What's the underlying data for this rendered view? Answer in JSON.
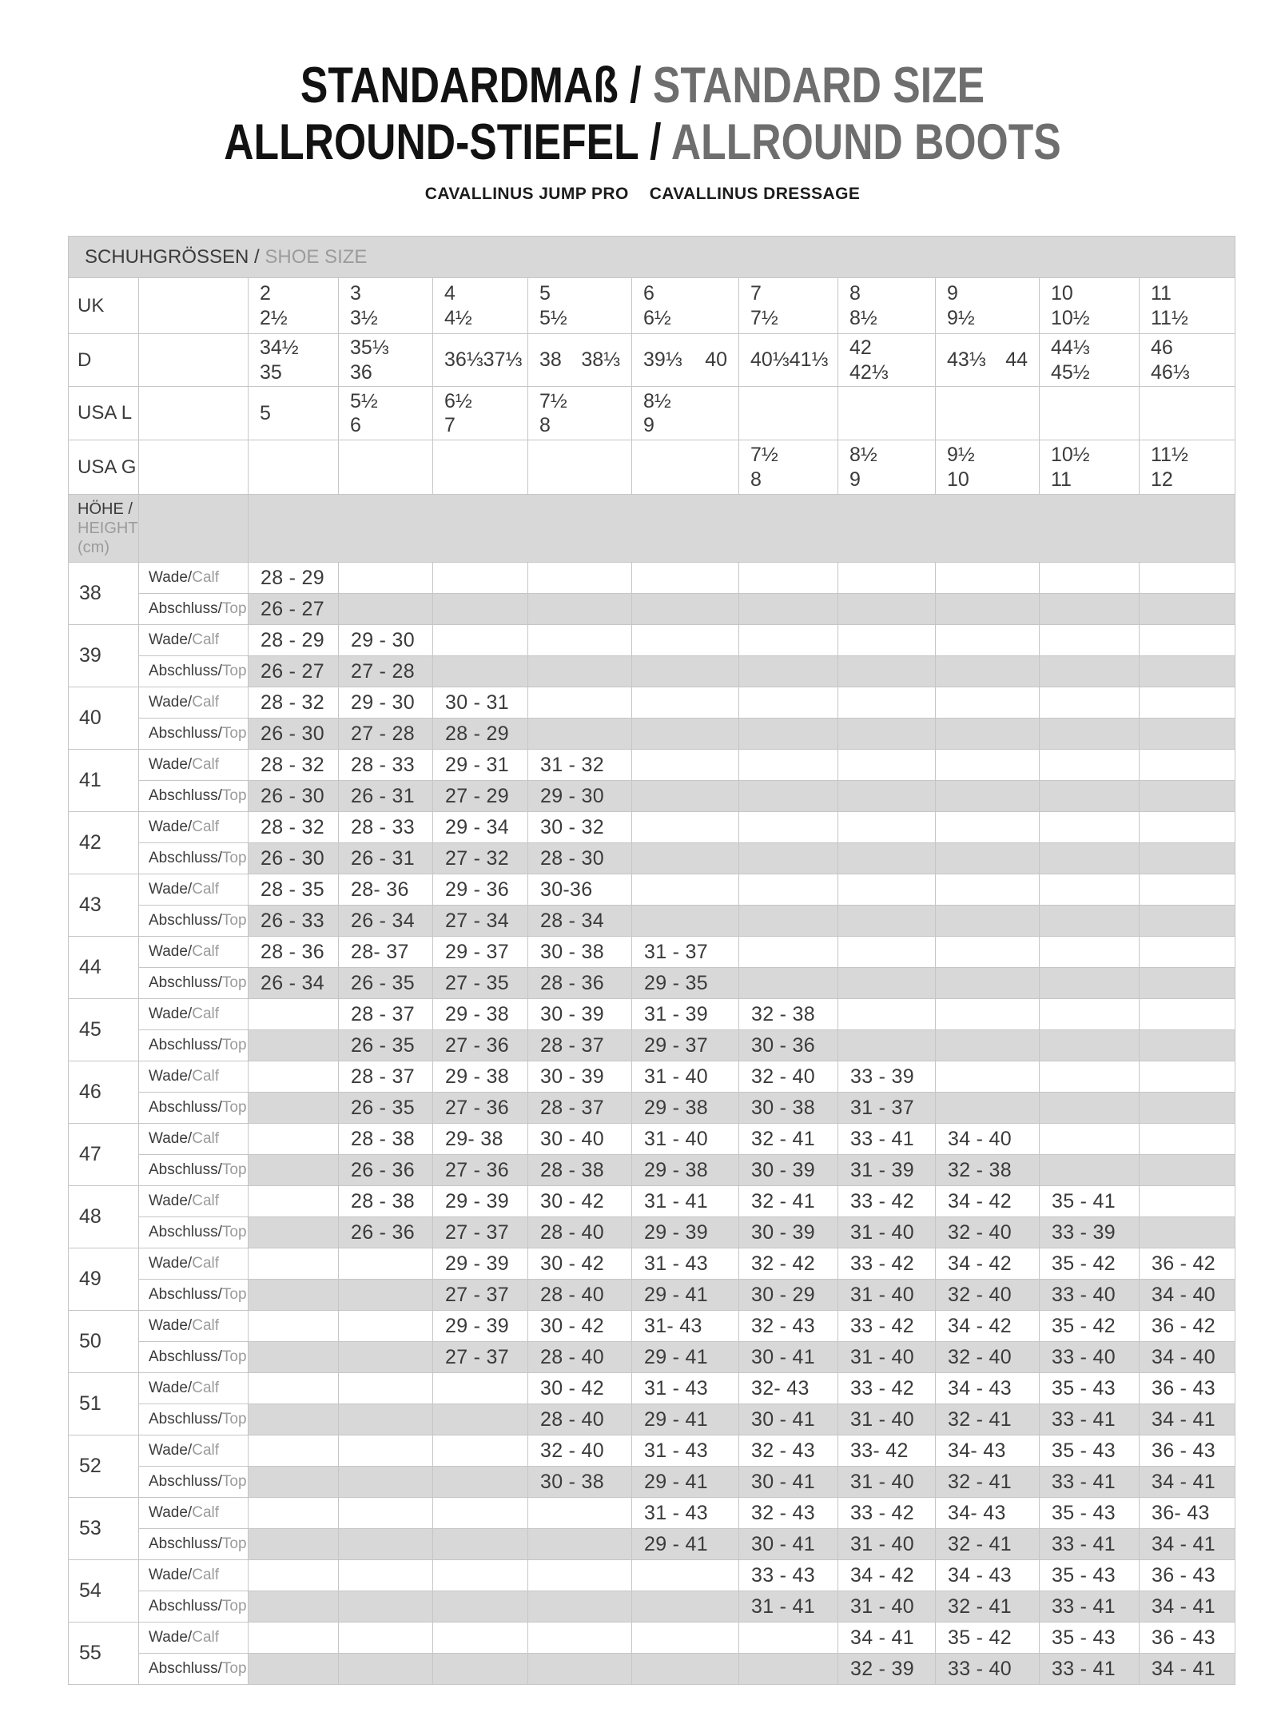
{
  "colors": {
    "band_gray": "#d8d8d8",
    "border": "#c6c6c6",
    "text_dark": "#3b3b3b",
    "text_gray": "#9b9b9b",
    "title_black": "#121212",
    "title_gray": "#6e6e6e"
  },
  "title": {
    "line1_black": "STANDARDMAß / ",
    "line1_gray": "STANDARD SIZE",
    "line2_black": "ALLROUND-STIEFEL / ",
    "line2_gray": "ALLROUND BOOTS"
  },
  "subtitle": {
    "left": "CAVALLINUS JUMP PRO",
    "right": "CAVALLINUS DRESSAGE"
  },
  "size_table": {
    "bar": {
      "de": "SCHUHGRÖSSEN / ",
      "en": "SHOE SIZE"
    },
    "height_header": {
      "de": "HÖHE /",
      "en": "HEIGHT",
      "unit": "(cm)"
    },
    "row_labels": {
      "calf_de": "Wade/",
      "calf_en": "Calf",
      "top_de": "Abschluss/",
      "top_en": "Top"
    },
    "size_rows": [
      {
        "label": "UK",
        "cells": [
          {
            "stack": [
              "2",
              "2½"
            ]
          },
          {
            "stack": [
              "3",
              "3½"
            ]
          },
          {
            "stack": [
              "4",
              "4½"
            ]
          },
          {
            "stack": [
              "5",
              "5½"
            ]
          },
          {
            "stack": [
              "6",
              "6½"
            ]
          },
          {
            "stack": [
              "7",
              "7½"
            ]
          },
          {
            "stack": [
              "8",
              "8½"
            ]
          },
          {
            "stack": [
              "9",
              "9½"
            ]
          },
          {
            "stack": [
              "10",
              "10½"
            ]
          },
          {
            "stack": [
              "11",
              "11½"
            ]
          }
        ]
      },
      {
        "label": "D",
        "cells": [
          {
            "stack": [
              "34½",
              "35"
            ]
          },
          {
            "stack": [
              "35⅓",
              "36"
            ]
          },
          {
            "pair": [
              "36⅓",
              "37⅓"
            ]
          },
          {
            "pair": [
              "38",
              "38⅓"
            ]
          },
          {
            "pair": [
              "39⅓",
              "40"
            ]
          },
          {
            "pair": [
              "40⅓",
              "41⅓"
            ]
          },
          {
            "stack": [
              "42",
              "42⅓"
            ]
          },
          {
            "pair": [
              "43⅓",
              "44"
            ]
          },
          {
            "stack": [
              "44⅓",
              "45½"
            ]
          },
          {
            "stack": [
              "46",
              "46⅓"
            ]
          }
        ]
      },
      {
        "label": "USA L",
        "cells": [
          {
            "stack": [
              "5"
            ]
          },
          {
            "stack": [
              "5½",
              "6"
            ]
          },
          {
            "stack": [
              "6½",
              "7"
            ]
          },
          {
            "stack": [
              "7½",
              "8"
            ]
          },
          {
            "stack": [
              "8½",
              "9"
            ]
          },
          null,
          null,
          null,
          null,
          null
        ]
      },
      {
        "label": "USA G",
        "cells": [
          null,
          null,
          null,
          null,
          null,
          {
            "stack": [
              "7½",
              "8"
            ]
          },
          {
            "stack": [
              "8½",
              "9"
            ]
          },
          {
            "stack": [
              "9½",
              "10"
            ]
          },
          {
            "stack": [
              "10½",
              "11"
            ]
          },
          {
            "stack": [
              "11½",
              "12"
            ]
          }
        ]
      }
    ],
    "heights": [
      {
        "h": "38",
        "calf": [
          "28 - 29",
          "",
          "",
          "",
          "",
          "",
          "",
          "",
          "",
          ""
        ],
        "top": [
          "26 - 27",
          "",
          "",
          "",
          "",
          "",
          "",
          "",
          "",
          ""
        ]
      },
      {
        "h": "39",
        "calf": [
          "28 - 29",
          "29 - 30",
          "",
          "",
          "",
          "",
          "",
          "",
          "",
          ""
        ],
        "top": [
          "26 - 27",
          "27 - 28",
          "",
          "",
          "",
          "",
          "",
          "",
          "",
          ""
        ]
      },
      {
        "h": "40",
        "calf": [
          "28 - 32",
          "29 - 30",
          "30 - 31",
          "",
          "",
          "",
          "",
          "",
          "",
          ""
        ],
        "top": [
          "26 - 30",
          "27 - 28",
          "28 - 29",
          "",
          "",
          "",
          "",
          "",
          "",
          ""
        ]
      },
      {
        "h": "41",
        "calf": [
          "28 - 32",
          "28 - 33",
          "29 - 31",
          "31 - 32",
          "",
          "",
          "",
          "",
          "",
          ""
        ],
        "top": [
          "26 - 30",
          "26 - 31",
          "27 - 29",
          "29 - 30",
          "",
          "",
          "",
          "",
          "",
          ""
        ]
      },
      {
        "h": "42",
        "calf": [
          "28 - 32",
          "28 - 33",
          "29 - 34",
          "30 - 32",
          "",
          "",
          "",
          "",
          "",
          ""
        ],
        "top": [
          "26 - 30",
          "26 - 31",
          "27 - 32",
          "28 - 30",
          "",
          "",
          "",
          "",
          "",
          ""
        ]
      },
      {
        "h": "43",
        "calf": [
          "28 - 35",
          "28- 36",
          "29 - 36",
          "30-36",
          "",
          "",
          "",
          "",
          "",
          ""
        ],
        "top": [
          "26 - 33",
          "26 - 34",
          "27 - 34",
          "28 - 34",
          "",
          "",
          "",
          "",
          "",
          ""
        ]
      },
      {
        "h": "44",
        "calf": [
          "28 - 36",
          "28- 37",
          "29 - 37",
          "30 - 38",
          "31 - 37",
          "",
          "",
          "",
          "",
          ""
        ],
        "top": [
          "26 - 34",
          "26 - 35",
          "27 - 35",
          "28 - 36",
          "29 - 35",
          "",
          "",
          "",
          "",
          ""
        ]
      },
      {
        "h": "45",
        "calf": [
          "",
          "28 - 37",
          "29 - 38",
          "30 - 39",
          "31 - 39",
          "32 - 38",
          "",
          "",
          "",
          ""
        ],
        "top": [
          "",
          "26 - 35",
          "27 - 36",
          "28 - 37",
          "29 - 37",
          "30 - 36",
          "",
          "",
          "",
          ""
        ]
      },
      {
        "h": "46",
        "calf": [
          "",
          "28 - 37",
          "29 - 38",
          "30 - 39",
          "31 - 40",
          "32 - 40",
          "33 - 39",
          "",
          "",
          ""
        ],
        "top": [
          "",
          "26 - 35",
          "27 - 36",
          "28 - 37",
          "29 - 38",
          "30 - 38",
          "31 - 37",
          "",
          "",
          ""
        ]
      },
      {
        "h": "47",
        "calf": [
          "",
          "28 - 38",
          "29- 38",
          "30 - 40",
          "31 - 40",
          "32 - 41",
          "33 - 41",
          "34 - 40",
          "",
          ""
        ],
        "top": [
          "",
          "26 - 36",
          "27 - 36",
          "28 - 38",
          "29 - 38",
          "30 - 39",
          "31 - 39",
          "32 - 38",
          "",
          ""
        ]
      },
      {
        "h": "48",
        "calf": [
          "",
          "28 - 38",
          "29 - 39",
          "30 - 42",
          "31 - 41",
          "32 - 41",
          "33 - 42",
          "34 - 42",
          "35 - 41",
          ""
        ],
        "top": [
          "",
          "26 - 36",
          "27 - 37",
          "28 - 40",
          "29 - 39",
          "30 - 39",
          "31 - 40",
          "32 - 40",
          "33 - 39",
          ""
        ]
      },
      {
        "h": "49",
        "calf": [
          "",
          "",
          "29 - 39",
          "30 - 42",
          "31 - 43",
          "32 - 42",
          "33 - 42",
          "34 - 42",
          "35 - 42",
          "36 - 42"
        ],
        "top": [
          "",
          "",
          "27 - 37",
          "28 - 40",
          "29 - 41",
          "30 - 29",
          "31 - 40",
          "32 - 40",
          "33 - 40",
          "34 - 40"
        ]
      },
      {
        "h": "50",
        "calf": [
          "",
          "",
          "29 - 39",
          "30 - 42",
          "31- 43",
          "32 - 43",
          "33 - 42",
          "34 - 42",
          "35 - 42",
          "36 - 42"
        ],
        "top": [
          "",
          "",
          "27 - 37",
          "28 - 40",
          "29 - 41",
          "30 - 41",
          "31 - 40",
          "32 - 40",
          "33 - 40",
          "34 - 40"
        ]
      },
      {
        "h": "51",
        "calf": [
          "",
          "",
          "",
          "30 - 42",
          "31 - 43",
          "32- 43",
          "33 - 42",
          "34 - 43",
          "35 - 43",
          "36 - 43"
        ],
        "top": [
          "",
          "",
          "",
          "28 - 40",
          "29 - 41",
          "30 - 41",
          "31 - 40",
          "32 - 41",
          "33 - 41",
          "34 - 41"
        ]
      },
      {
        "h": "52",
        "calf": [
          "",
          "",
          "",
          "32 - 40",
          "31 - 43",
          "32 - 43",
          "33- 42",
          "34- 43",
          "35 - 43",
          "36 - 43"
        ],
        "top": [
          "",
          "",
          "",
          "30 - 38",
          "29 - 41",
          "30 - 41",
          "31 - 40",
          "32 - 41",
          "33 - 41",
          "34 - 41"
        ]
      },
      {
        "h": "53",
        "calf": [
          "",
          "",
          "",
          "",
          "31 - 43",
          "32 - 43",
          "33 - 42",
          "34- 43",
          "35 - 43",
          "36- 43"
        ],
        "top": [
          "",
          "",
          "",
          "",
          "29 - 41",
          "30 - 41",
          "31 - 40",
          "32 - 41",
          "33 - 41",
          "34 - 41"
        ]
      },
      {
        "h": "54",
        "calf": [
          "",
          "",
          "",
          "",
          "",
          "33 - 43",
          "34 - 42",
          "34 - 43",
          "35 - 43",
          "36 - 43"
        ],
        "top": [
          "",
          "",
          "",
          "",
          "",
          "31 - 41",
          "31 - 40",
          "32 - 41",
          "33 - 41",
          "34 - 41"
        ]
      },
      {
        "h": "55",
        "calf": [
          "",
          "",
          "",
          "",
          "",
          "",
          "34 - 41",
          "35 - 42",
          "35 - 43",
          "36 - 43"
        ],
        "top": [
          "",
          "",
          "",
          "",
          "",
          "",
          "32 - 39",
          "33 - 40",
          "33 - 41",
          "34 - 41"
        ]
      }
    ]
  }
}
